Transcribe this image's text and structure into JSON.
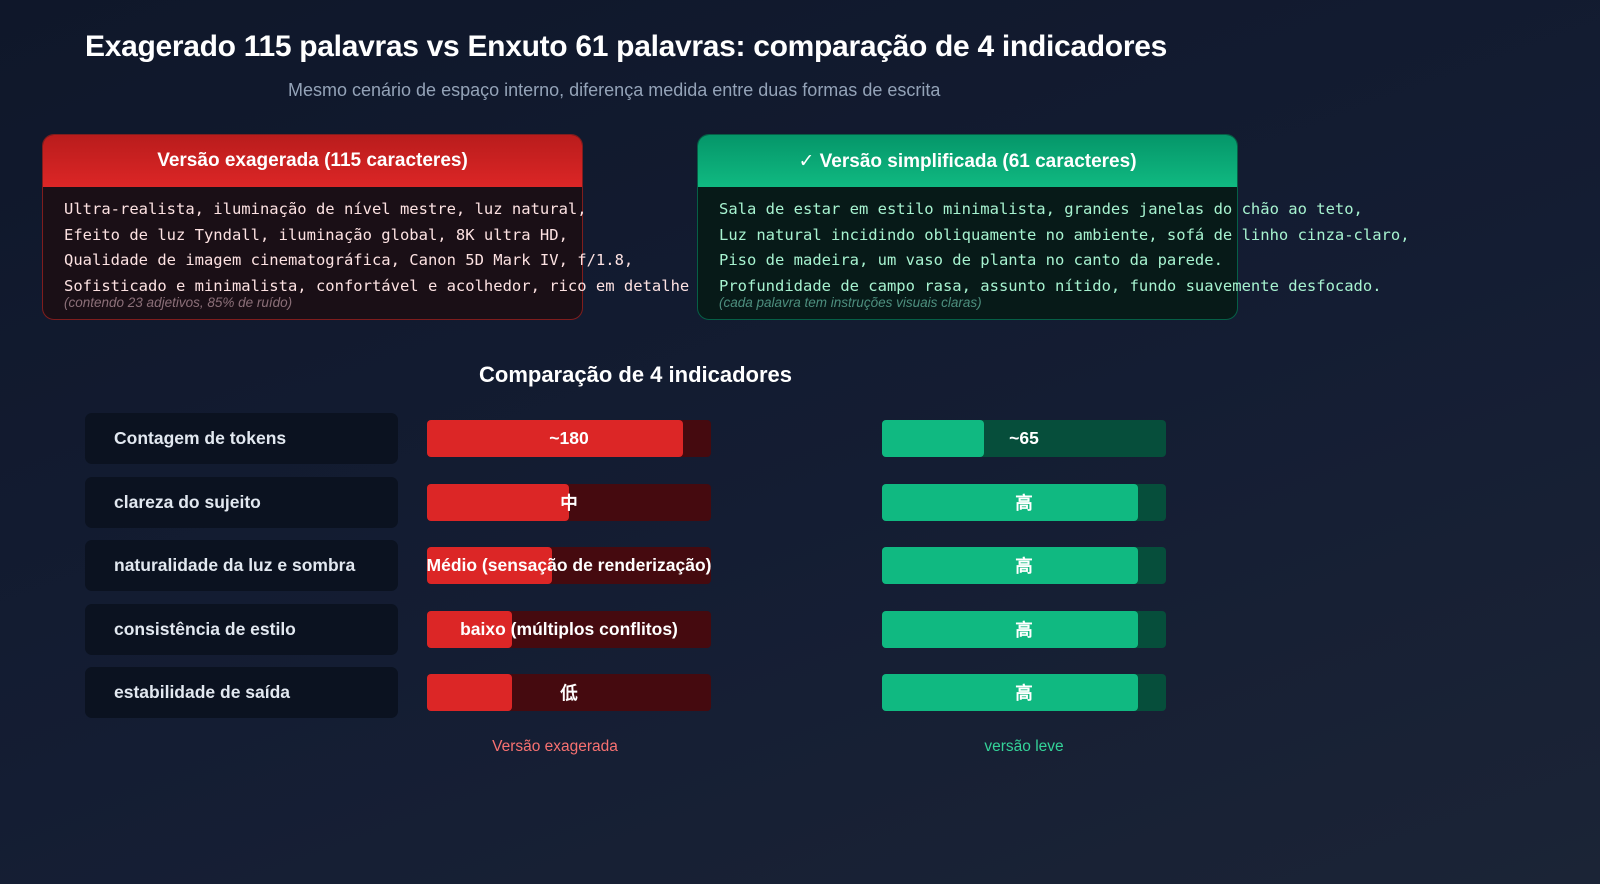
{
  "header": {
    "title": "Exagerado 115 palavras vs Enxuto 61 palavras: comparação de 4 indicadores",
    "subtitle": "Mesmo cenário de espaço interno, diferença medida entre duas formas de escrita"
  },
  "cards": {
    "bad": {
      "title": "Versão exagerada (115 caracteres)",
      "lines": [
        "Ultra-realista, iluminação de nível mestre, luz natural,",
        "Efeito de luz Tyndall, iluminação global, 8K ultra HD,",
        "Qualidade de imagem cinematográfica, Canon 5D Mark IV, f/1.8,",
        "Sofisticado e minimalista, confortável e acolhedor, rico em detalhe"
      ],
      "note": "(contendo 23 adjetivos, 85% de ruído)"
    },
    "good": {
      "title": "✓ Versão simplificada (61 caracteres)",
      "lines": [
        "Sala de estar em estilo minimalista, grandes janelas do chão ao teto,",
        "Luz natural incidindo obliquamente no ambiente, sofá de linho cinza-claro,",
        "Piso de madeira, um vaso de planta no canto da parede.",
        "Profundidade de campo rasa, assunto nítido, fundo suavemente desfocado."
      ],
      "note": "(cada palavra tem instruções visuais claras)"
    }
  },
  "comparison": {
    "title": "Comparação de 4 indicadores",
    "legend_bad": "Versão exagerada",
    "legend_good": "versão leve"
  },
  "chart_data": {
    "type": "bar",
    "title": "Comparação de 4 indicadores",
    "categories": [
      "Contagem de tokens",
      "clareza do sujeito",
      "naturalidade da luz e sombra",
      "consistência de estilo",
      "estabilidade de saída"
    ],
    "series": [
      {
        "name": "Versão exagerada",
        "color": "#dc2626",
        "track_color": "#450a0f",
        "labels": [
          "~180",
          "中",
          "Médio (sensação de renderização)",
          "baixo (múltiplos conflitos)",
          "低"
        ],
        "values": [
          0.9,
          0.5,
          0.44,
          0.3,
          0.3
        ]
      },
      {
        "name": "versão leve",
        "color": "#10b981",
        "track_color": "#064e3b",
        "labels": [
          "~65",
          "高",
          "高",
          "高",
          "高"
        ],
        "values": [
          0.36,
          0.9,
          0.9,
          0.9,
          0.9
        ]
      }
    ],
    "ylim": [
      0,
      1
    ]
  }
}
